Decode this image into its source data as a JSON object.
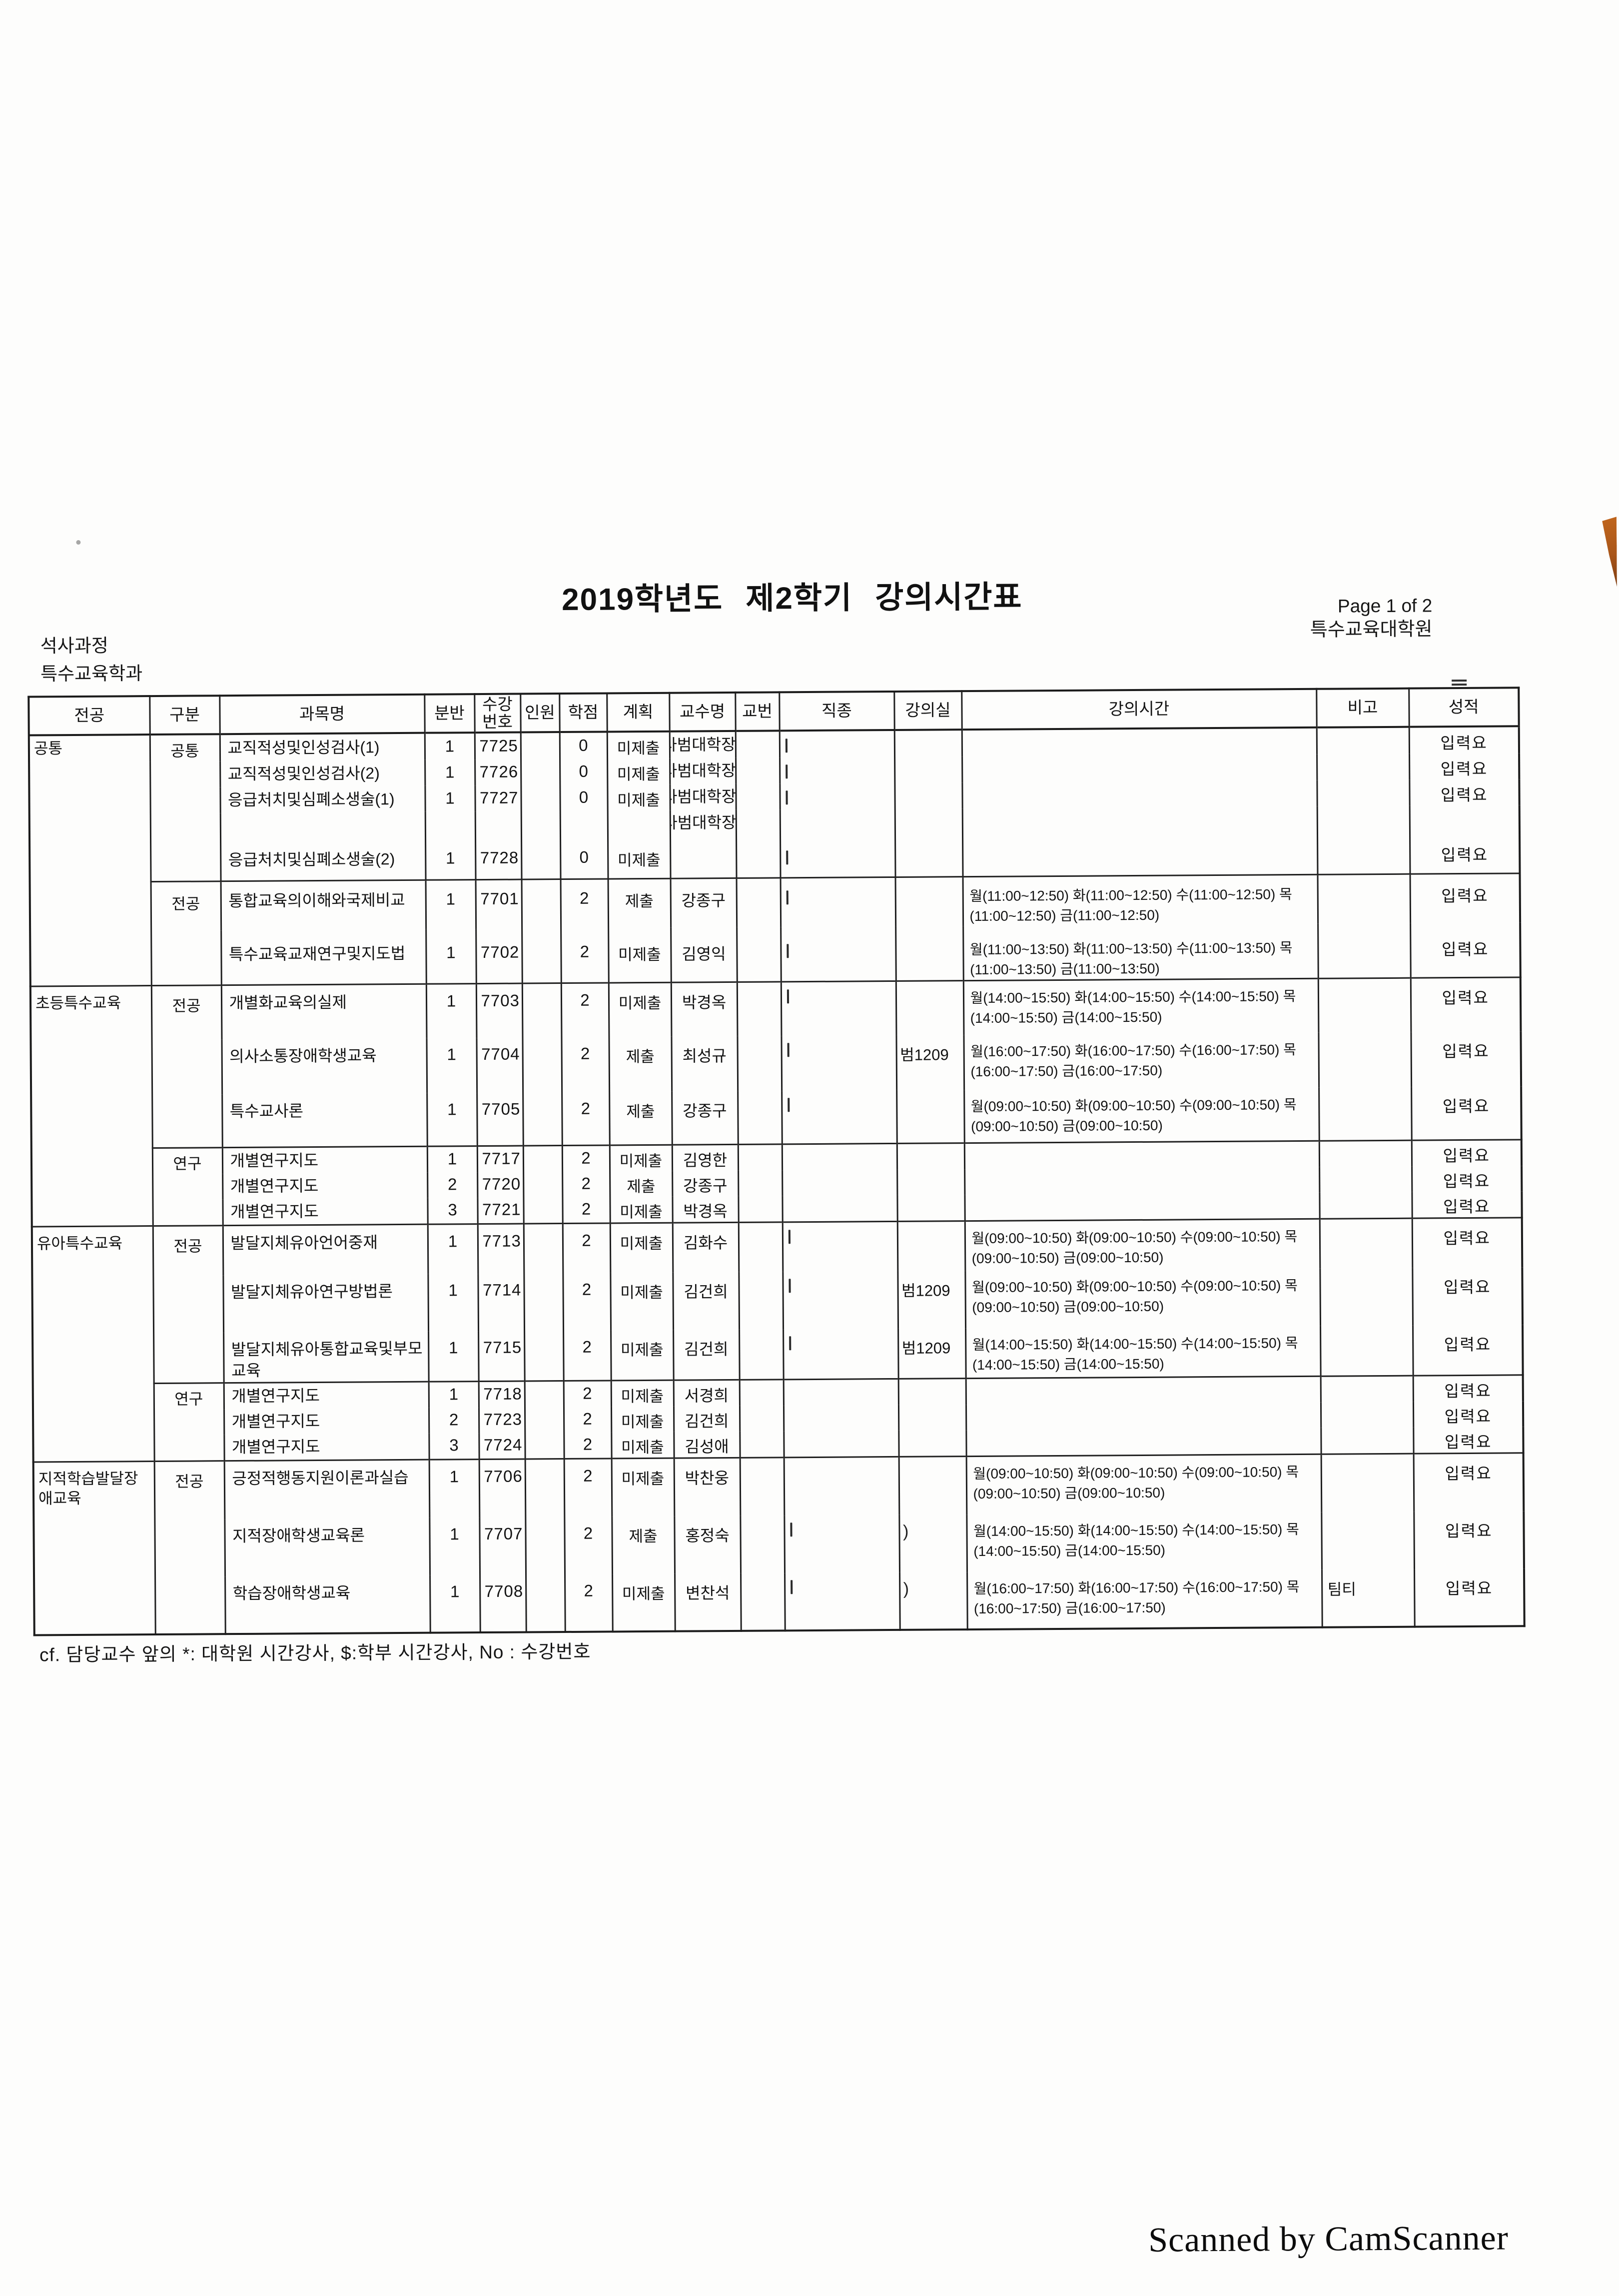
{
  "page": {
    "title": "2019학년도 제2학기 강의시간표",
    "page_info": "Page 1 of 2",
    "org": "특수교육대학원",
    "program": "석사과정",
    "department": "특수교육학과",
    "footnote": "cf. 담당교수 앞의 *: 대학원 시간강사, $:학부 시간강사, No : 수강번호",
    "watermark": "Scanned by CamScanner",
    "artifact_color": "#a9561a",
    "stray_mark": ")"
  },
  "table": {
    "headers": [
      "전공",
      "구분",
      "과목명",
      "분반",
      "수강번호",
      "인원",
      "학점",
      "계획",
      "교수명",
      "교번",
      "직종",
      "강의실",
      "강의시간",
      "비고",
      "성적"
    ],
    "majors": [
      {
        "label": "공통",
        "groups": [
          {
            "label": "공통",
            "courses": [
              {
                "name": "교직적성및인성검사(1)",
                "section": "1",
                "code": "7725",
                "enroll": "",
                "credit": "0",
                "plan": "미제출",
                "prof": "사범대학장",
                "profno": "",
                "job": "",
                "room": "",
                "time": "",
                "note": "",
                "grade": "입력요"
              },
              {
                "name": "교직적성및인성검사(2)",
                "section": "1",
                "code": "7726",
                "enroll": "",
                "credit": "0",
                "plan": "미제출",
                "prof": "사범대학장",
                "profno": "",
                "job": "",
                "room": "",
                "time": "",
                "note": "",
                "grade": "입력요"
              },
              {
                "name": "응급처치및심폐소생술(1)",
                "section": "1",
                "code": "7727",
                "enroll": "",
                "credit": "0",
                "plan": "미제출",
                "prof": "사범대학장",
                "profno": "",
                "job": "",
                "room": "",
                "time": "",
                "note": "",
                "grade": "입력요"
              },
              {
                "name": "응급처치및심폐소생술(2)",
                "section": "1",
                "code": "7728",
                "enroll": "",
                "credit": "0",
                "plan": "미제출",
                "prof": "사범대학장",
                "profno": "",
                "job": "",
                "room": "",
                "time": "",
                "note": "",
                "grade": "입력요"
              }
            ]
          },
          {
            "label": "전공",
            "courses": [
              {
                "name": "통합교육의이해와국제비교",
                "section": "1",
                "code": "7701",
                "enroll": "",
                "credit": "2",
                "plan": "제출",
                "prof": "강종구",
                "profno": "",
                "job": "",
                "room": "",
                "time": "월(11:00~12:50) 화(11:00~12:50) 수(11:00~12:50) 목(11:00~12:50) 금(11:00~12:50)",
                "note": "",
                "grade": "입력요"
              },
              {
                "name": "특수교육교재연구및지도법",
                "section": "1",
                "code": "7702",
                "enroll": "",
                "credit": "2",
                "plan": "미제출",
                "prof": "김영익",
                "profno": "",
                "job": "",
                "room": "",
                "time": "월(11:00~13:50) 화(11:00~13:50) 수(11:00~13:50) 목(11:00~13:50) 금(11:00~13:50)",
                "note": "",
                "grade": "입력요"
              }
            ]
          }
        ]
      },
      {
        "label": "초등특수교육",
        "groups": [
          {
            "label": "전공",
            "courses": [
              {
                "name": "개별화교육의실제",
                "section": "1",
                "code": "7703",
                "enroll": "",
                "credit": "2",
                "plan": "미제출",
                "prof": "박경옥",
                "profno": "",
                "job": "",
                "room": "",
                "time": "월(14:00~15:50) 화(14:00~15:50) 수(14:00~15:50) 목(14:00~15:50) 금(14:00~15:50)",
                "note": "",
                "grade": "입력요"
              },
              {
                "name": "의사소통장애학생교육",
                "section": "1",
                "code": "7704",
                "enroll": "",
                "credit": "2",
                "plan": "제출",
                "prof": "최성규",
                "profno": "",
                "job": "",
                "room": "범1209",
                "time": "월(16:00~17:50) 화(16:00~17:50) 수(16:00~17:50) 목(16:00~17:50) 금(16:00~17:50)",
                "note": "",
                "grade": "입력요"
              },
              {
                "name": "특수교사론",
                "section": "1",
                "code": "7705",
                "enroll": "",
                "credit": "2",
                "plan": "제출",
                "prof": "강종구",
                "profno": "",
                "job": "",
                "room": "",
                "time": "월(09:00~10:50) 화(09:00~10:50) 수(09:00~10:50) 목(09:00~10:50) 금(09:00~10:50)",
                "note": "",
                "grade": "입력요"
              }
            ]
          },
          {
            "label": "연구",
            "courses": [
              {
                "name": "개별연구지도",
                "section": "1",
                "code": "7717",
                "enroll": "",
                "credit": "2",
                "plan": "미제출",
                "prof": "김영한",
                "profno": "",
                "job": "",
                "room": "",
                "time": "",
                "note": "",
                "grade": "입력요"
              },
              {
                "name": "개별연구지도",
                "section": "2",
                "code": "7720",
                "enroll": "",
                "credit": "2",
                "plan": "제출",
                "prof": "강종구",
                "profno": "",
                "job": "",
                "room": "",
                "time": "",
                "note": "",
                "grade": "입력요"
              },
              {
                "name": "개별연구지도",
                "section": "3",
                "code": "7721",
                "enroll": "",
                "credit": "2",
                "plan": "미제출",
                "prof": "박경옥",
                "profno": "",
                "job": "",
                "room": "",
                "time": "",
                "note": "",
                "grade": "입력요"
              }
            ]
          }
        ]
      },
      {
        "label": "유아특수교육",
        "groups": [
          {
            "label": "전공",
            "courses": [
              {
                "name": "발달지체유아언어중재",
                "section": "1",
                "code": "7713",
                "enroll": "",
                "credit": "2",
                "plan": "미제출",
                "prof": "김화수",
                "profno": "",
                "job": "",
                "room": "",
                "time": "월(09:00~10:50) 화(09:00~10:50) 수(09:00~10:50) 목(09:00~10:50) 금(09:00~10:50)",
                "note": "",
                "grade": "입력요"
              },
              {
                "name": "발달지체유아연구방법론",
                "section": "1",
                "code": "7714",
                "enroll": "",
                "credit": "2",
                "plan": "미제출",
                "prof": "김건희",
                "profno": "",
                "job": "",
                "room": "범1209",
                "time": "월(09:00~10:50) 화(09:00~10:50) 수(09:00~10:50) 목(09:00~10:50) 금(09:00~10:50)",
                "note": "",
                "grade": "입력요"
              },
              {
                "name": "발달지체유아통합교육및부모교육",
                "section": "1",
                "code": "7715",
                "enroll": "",
                "credit": "2",
                "plan": "미제출",
                "prof": "김건희",
                "profno": "",
                "job": "",
                "room": "범1209",
                "time": "월(14:00~15:50) 화(14:00~15:50) 수(14:00~15:50) 목(14:00~15:50) 금(14:00~15:50)",
                "note": "",
                "grade": "입력요"
              }
            ]
          },
          {
            "label": "연구",
            "courses": [
              {
                "name": "개별연구지도",
                "section": "1",
                "code": "7718",
                "enroll": "",
                "credit": "2",
                "plan": "미제출",
                "prof": "서경희",
                "profno": "",
                "job": "",
                "room": "",
                "time": "",
                "note": "",
                "grade": "입력요"
              },
              {
                "name": "개별연구지도",
                "section": "2",
                "code": "7723",
                "enroll": "",
                "credit": "2",
                "plan": "미제출",
                "prof": "김건희",
                "profno": "",
                "job": "",
                "room": "",
                "time": "",
                "note": "",
                "grade": "입력요"
              },
              {
                "name": "개별연구지도",
                "section": "3",
                "code": "7724",
                "enroll": "",
                "credit": "2",
                "plan": "미제출",
                "prof": "김성애",
                "profno": "",
                "job": "",
                "room": "",
                "time": "",
                "note": "",
                "grade": "입력요"
              }
            ]
          }
        ]
      },
      {
        "label": "지적학습발달장애교육",
        "groups": [
          {
            "label": "전공",
            "courses": [
              {
                "name": "긍정적행동지원이론과실습",
                "section": "1",
                "code": "7706",
                "enroll": "",
                "credit": "2",
                "plan": "미제출",
                "prof": "박찬웅",
                "profno": "",
                "job": "",
                "room": "",
                "time": "월(09:00~10:50) 화(09:00~10:50) 수(09:00~10:50) 목(09:00~10:50) 금(09:00~10:50)",
                "note": "",
                "grade": "입력요"
              },
              {
                "name": "지적장애학생교육론",
                "section": "1",
                "code": "7707",
                "enroll": "",
                "credit": "2",
                "plan": "제출",
                "prof": "홍정숙",
                "profno": "",
                "job": "",
                "room": "",
                "time": "월(14:00~15:50) 화(14:00~15:50) 수(14:00~15:50) 목(14:00~15:50) 금(14:00~15:50)",
                "note": "",
                "grade": "입력요"
              },
              {
                "name": "학습장애학생교육",
                "section": "1",
                "code": "7708",
                "enroll": "",
                "credit": "2",
                "plan": "미제출",
                "prof": "변찬석",
                "profno": "",
                "job": "",
                "room": "",
                "time": "월(16:00~17:50) 화(16:00~17:50) 수(16:00~17:50) 목(16:00~17:50) 금(16:00~17:50)",
                "note": "팀티",
                "grade": "입력요"
              }
            ]
          }
        ]
      }
    ]
  }
}
